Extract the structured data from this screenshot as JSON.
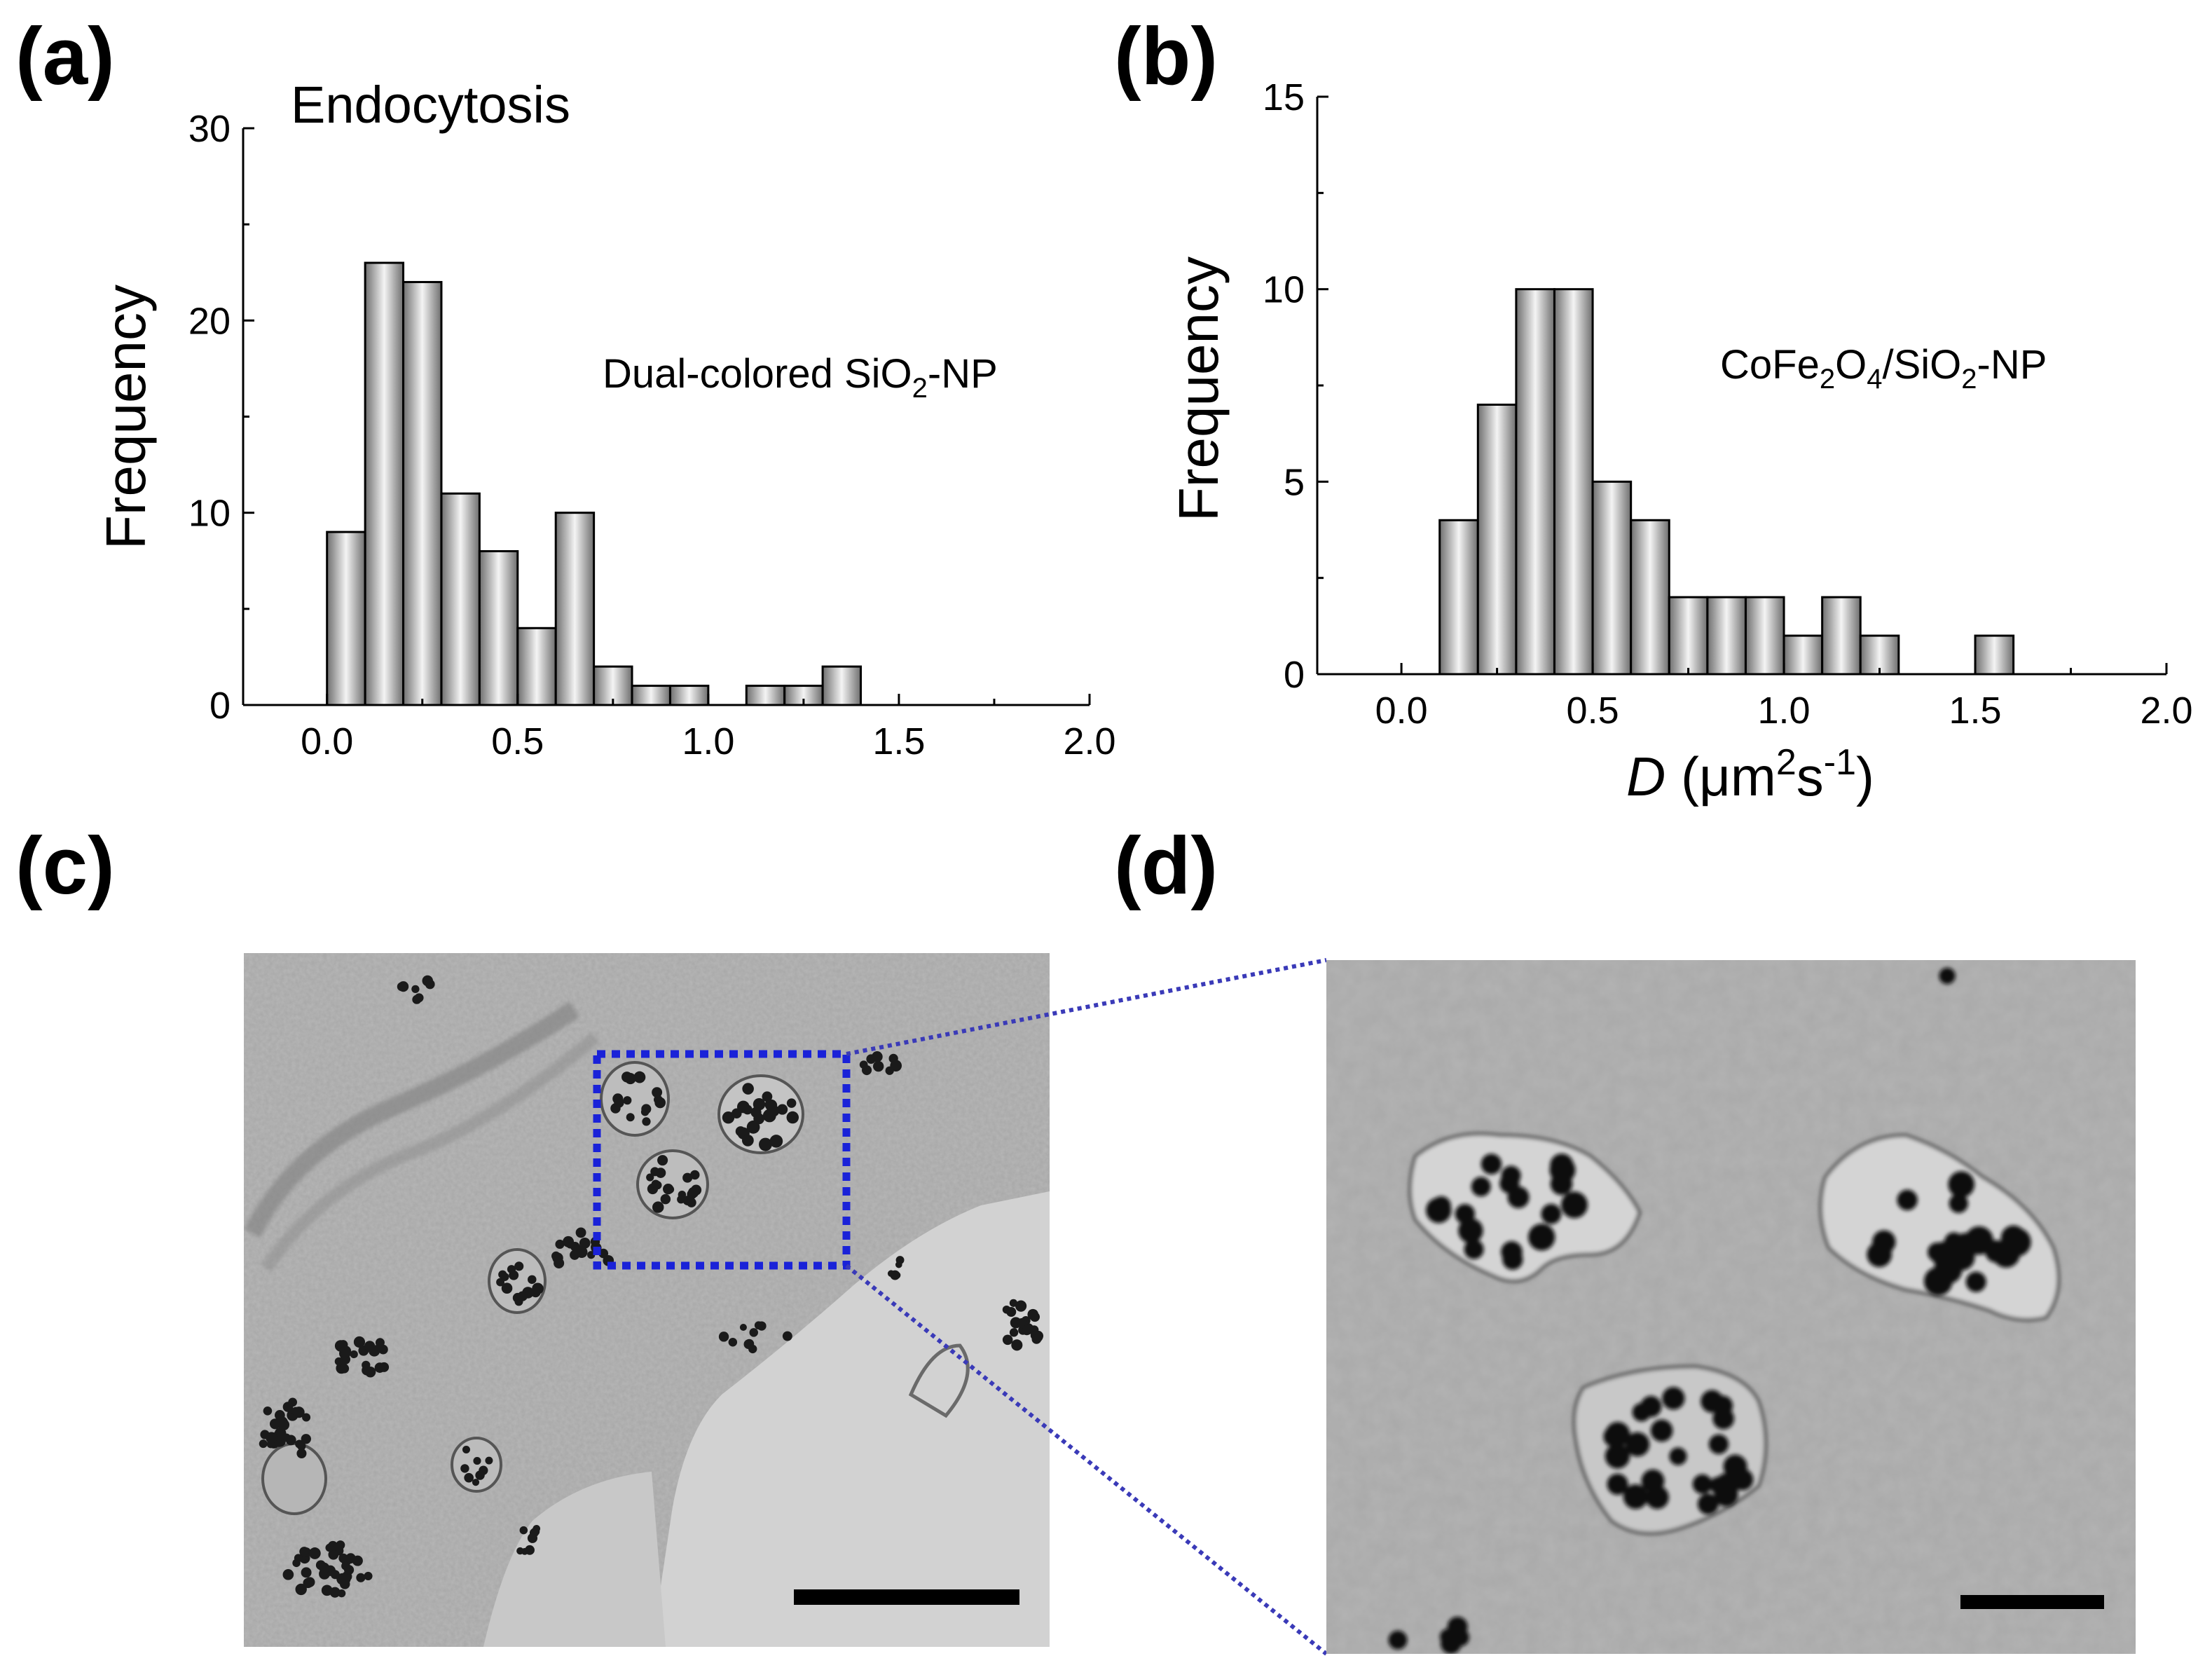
{
  "panels": {
    "a": {
      "tag": "(a)"
    },
    "b": {
      "tag": "(b)"
    },
    "c": {
      "tag": "(c)"
    },
    "d": {
      "tag": "(d)"
    }
  },
  "chart_data": [
    {
      "type": "bar",
      "panel": "(a)",
      "title": "Endocytosis",
      "annotation": {
        "prefix": "Dual-colored SiO",
        "sub": "2",
        "suffix": "-NP"
      },
      "ylabel": "Frequency",
      "xlabel": "",
      "xlim": [
        -0.22,
        2.0
      ],
      "ylim": [
        0,
        30
      ],
      "bin_width": 0.1,
      "xticks": [
        "0.0",
        "0.5",
        "1.0",
        "1.5",
        "2.0"
      ],
      "xtick_values": [
        0.0,
        0.5,
        1.0,
        1.5,
        2.0
      ],
      "yticks": [
        "0",
        "10",
        "20",
        "30"
      ],
      "ytick_values": [
        0,
        10,
        20,
        30
      ],
      "bins": [
        {
          "x": 0.0,
          "value": 9
        },
        {
          "x": 0.1,
          "value": 23
        },
        {
          "x": 0.2,
          "value": 22
        },
        {
          "x": 0.3,
          "value": 11
        },
        {
          "x": 0.4,
          "value": 8
        },
        {
          "x": 0.5,
          "value": 4
        },
        {
          "x": 0.6,
          "value": 10
        },
        {
          "x": 0.7,
          "value": 2
        },
        {
          "x": 0.8,
          "value": 1
        },
        {
          "x": 0.9,
          "value": 1
        },
        {
          "x": 1.1,
          "value": 1
        },
        {
          "x": 1.2,
          "value": 1
        },
        {
          "x": 1.3,
          "value": 2
        }
      ]
    },
    {
      "type": "bar",
      "panel": "(b)",
      "title": "",
      "annotation": {
        "parts": [
          [
            "CoFe",
            ""
          ],
          [
            "2",
            "sub"
          ],
          [
            "O",
            ""
          ],
          [
            "4",
            "sub"
          ],
          [
            "/SiO",
            ""
          ],
          [
            "2",
            "sub"
          ],
          [
            "-NP",
            ""
          ]
        ]
      },
      "ylabel": "Frequency",
      "xlabel": {
        "italic": "D",
        "unit_prefix": " (μm",
        "sup1": "2",
        "mid": "s",
        "sup2": "-1",
        "end": ")"
      },
      "xlim": [
        -0.22,
        2.0
      ],
      "ylim": [
        0,
        15
      ],
      "bin_width": 0.1,
      "xticks": [
        "0.0",
        "0.5",
        "1.0",
        "1.5",
        "2.0"
      ],
      "xtick_values": [
        0.0,
        0.5,
        1.0,
        1.5,
        2.0
      ],
      "yticks": [
        "0",
        "5",
        "10",
        "15"
      ],
      "ytick_values": [
        0,
        5,
        10,
        15
      ],
      "bins": [
        {
          "x": 0.1,
          "value": 4
        },
        {
          "x": 0.2,
          "value": 7
        },
        {
          "x": 0.3,
          "value": 10
        },
        {
          "x": 0.4,
          "value": 10
        },
        {
          "x": 0.5,
          "value": 5
        },
        {
          "x": 0.6,
          "value": 4
        },
        {
          "x": 0.7,
          "value": 2
        },
        {
          "x": 0.8,
          "value": 2
        },
        {
          "x": 0.9,
          "value": 2
        },
        {
          "x": 1.0,
          "value": 1
        },
        {
          "x": 1.1,
          "value": 2
        },
        {
          "x": 1.2,
          "value": 1
        },
        {
          "x": 1.5,
          "value": 1
        }
      ]
    }
  ],
  "colors": {
    "bar_stroke": "#000000",
    "bar_dark": "#6e6e6e",
    "bar_light": "#f4f4f4",
    "zoom_box": "#1a22d8",
    "zoom_lines": "#3a3ab8",
    "scale_bar": "#000000",
    "micrograph_bg": "#a7a7a7",
    "micrograph_lumen": "#d0d0d0"
  }
}
